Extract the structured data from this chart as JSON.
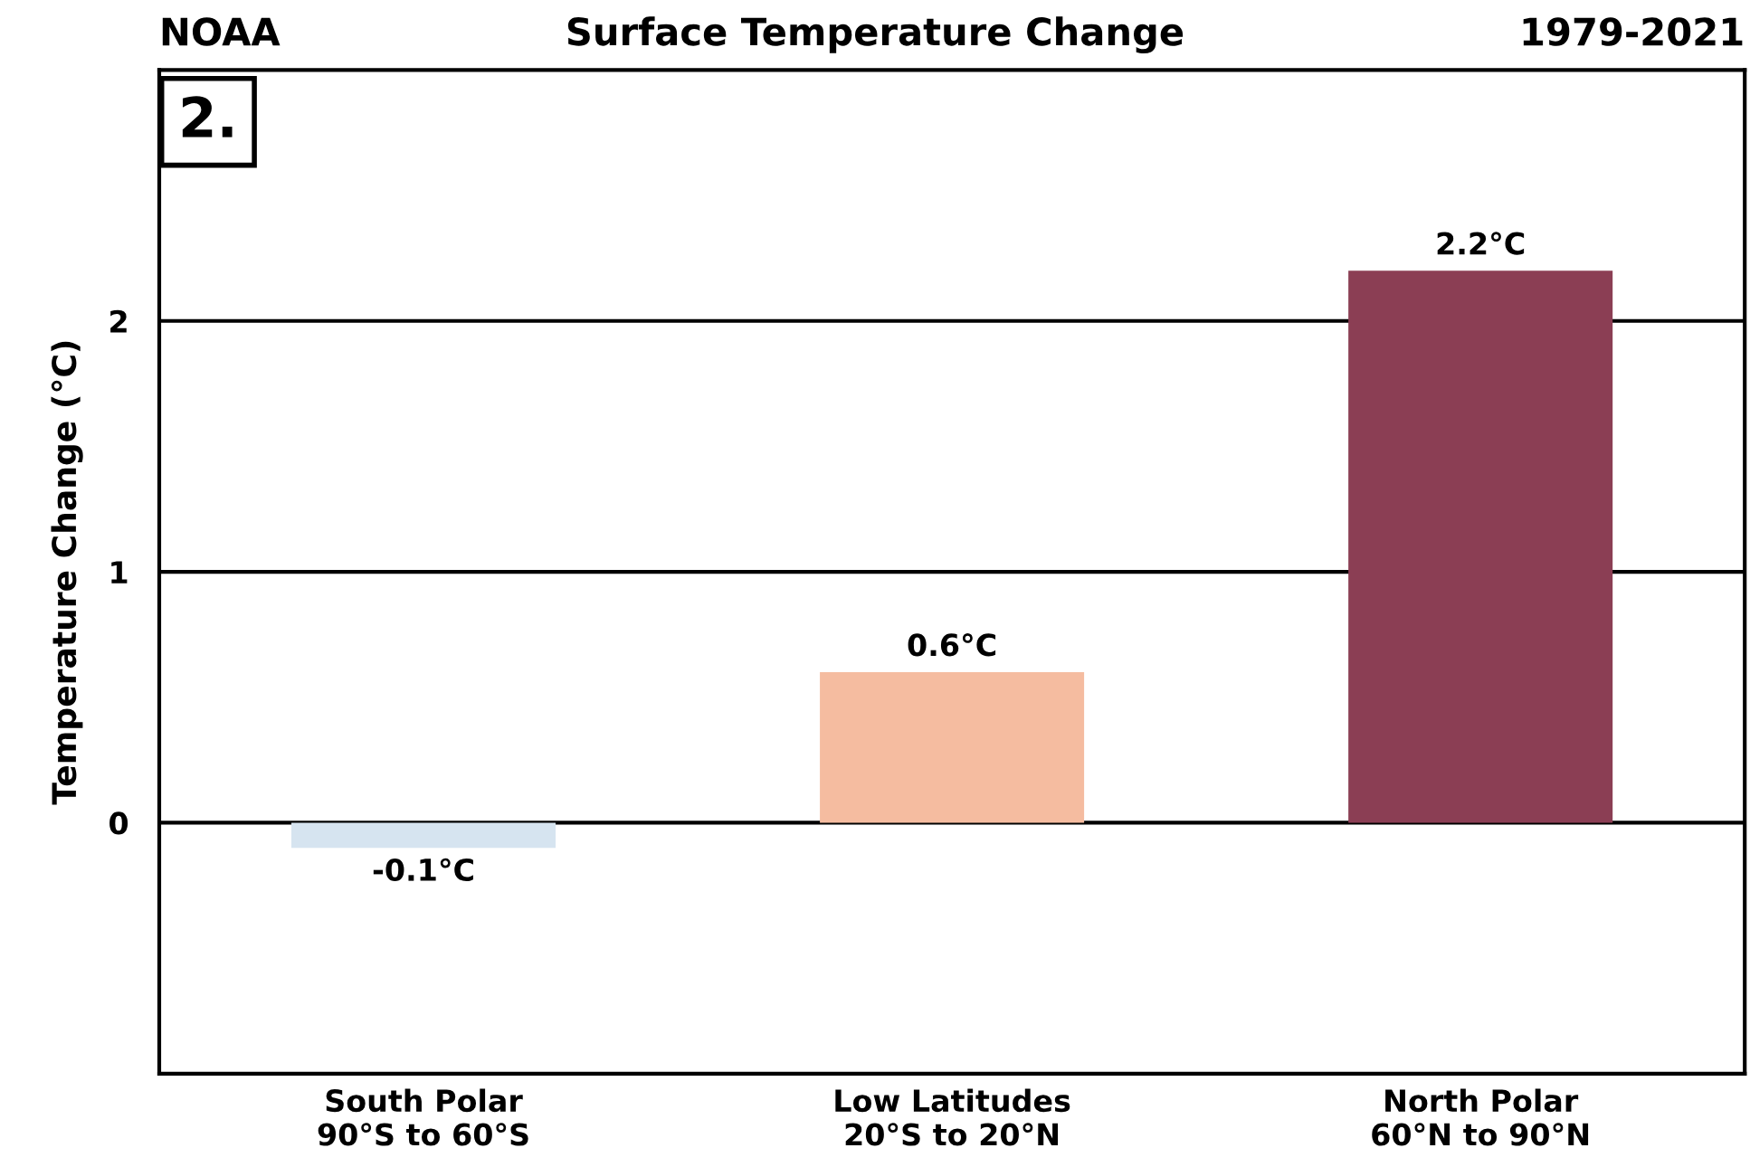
{
  "chart_data": {
    "type": "bar",
    "title": "Surface Temperature Change",
    "ylabel": "Temperature Change (°C)",
    "categories": [
      "South Polar\n90°S to 60°S",
      "Low Latitudes\n20°S to 20°N",
      "North Polar\n60°N to 90°N"
    ],
    "values": [
      -0.1,
      0.6,
      2.2
    ],
    "colors": [
      "#d6e4f0",
      "#f5bca0",
      "#8b3e54"
    ],
    "value_labels": [
      "-0.1°C",
      "0.6°C",
      "2.2°C"
    ],
    "ylim": [
      -1.0,
      3.0
    ],
    "yticks": [
      0,
      1,
      2
    ],
    "grid": "y",
    "annotations": [
      "NOAA",
      "1979-2021",
      "2."
    ]
  }
}
